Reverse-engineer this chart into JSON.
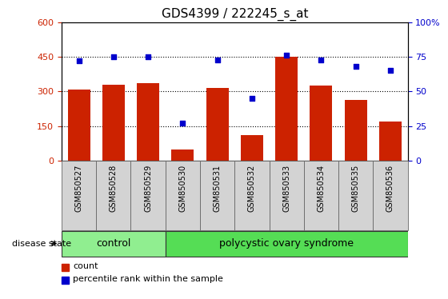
{
  "title": "GDS4399 / 222245_s_at",
  "samples": [
    "GSM850527",
    "GSM850528",
    "GSM850529",
    "GSM850530",
    "GSM850531",
    "GSM850532",
    "GSM850533",
    "GSM850534",
    "GSM850535",
    "GSM850536"
  ],
  "counts": [
    310,
    330,
    335,
    50,
    315,
    110,
    450,
    325,
    265,
    170
  ],
  "percentiles": [
    72,
    75,
    75,
    27,
    73,
    45,
    76,
    73,
    68,
    65
  ],
  "bar_color": "#cc2200",
  "scatter_color": "#0000cc",
  "left_ylim": [
    0,
    600
  ],
  "right_ylim": [
    0,
    100
  ],
  "left_yticks": [
    0,
    150,
    300,
    450,
    600
  ],
  "right_yticks": [
    0,
    25,
    50,
    75,
    100
  ],
  "grid_values": [
    150,
    300,
    450
  ],
  "n_control": 3,
  "control_color": "#90ee90",
  "pcos_color": "#55dd55",
  "label_bg_color": "#d3d3d3",
  "disease_state_label": "disease state",
  "control_label": "control",
  "pcos_label": "polycystic ovary syndrome",
  "legend_bar_label": "count",
  "legend_scatter_label": "percentile rank within the sample",
  "left_tick_color": "#cc2200",
  "right_tick_color": "#0000cc",
  "title_fontsize": 11,
  "axis_fontsize": 8,
  "label_fontsize": 7,
  "disease_fontsize": 9
}
